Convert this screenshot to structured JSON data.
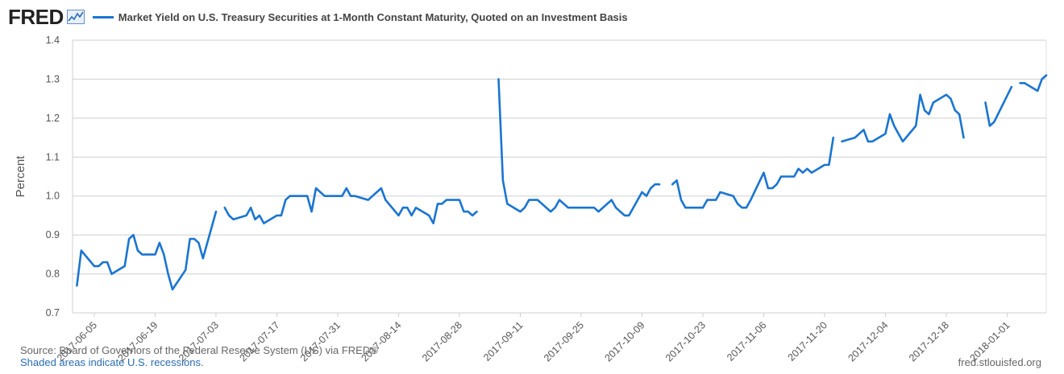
{
  "header": {
    "logo_text": "FRED",
    "logo_icon": "chart-line-icon",
    "series_title": "Market Yield on U.S. Treasury Securities at 1-Month Constant Maturity, Quoted on an Investment Basis",
    "series_color": "#1a75d1"
  },
  "footer": {
    "source": "Source: Board of Governors of the Federal Reserve System (US) via FRED®",
    "shaded": "Shaded areas indicate U.S. recessions.",
    "credit": "fred.stlouisfed.org"
  },
  "chart_data": {
    "type": "line",
    "ylabel": "Percent",
    "ylim": [
      0.7,
      1.4
    ],
    "yticks": [
      0.7,
      0.8,
      0.9,
      1.0,
      1.1,
      1.2,
      1.3,
      1.4
    ],
    "ytick_labels": [
      "0.7",
      "0.8",
      "0.9",
      "1.0",
      "1.1",
      "1.2",
      "1.3",
      "1.4"
    ],
    "xlim": [
      "2017-05-31",
      "2018-01-10"
    ],
    "xticks": [
      "2017-06-05",
      "2017-06-19",
      "2017-07-03",
      "2017-07-17",
      "2017-07-31",
      "2017-08-14",
      "2017-08-28",
      "2017-09-11",
      "2017-09-25",
      "2017-10-09",
      "2017-10-23",
      "2017-11-06",
      "2017-11-20",
      "2017-12-04",
      "2017-12-18",
      "2018-01-01"
    ],
    "grid": true,
    "series": [
      {
        "segments": [
          {
            "x": [
              "2017-06-01",
              "2017-06-02",
              "2017-06-05",
              "2017-06-06",
              "2017-06-07",
              "2017-06-08",
              "2017-06-09",
              "2017-06-12",
              "2017-06-13",
              "2017-06-14",
              "2017-06-15",
              "2017-06-16",
              "2017-06-19",
              "2017-06-20",
              "2017-06-21",
              "2017-06-22",
              "2017-06-23",
              "2017-06-26",
              "2017-06-27",
              "2017-06-28",
              "2017-06-29",
              "2017-06-30",
              "2017-07-03"
            ],
            "y": [
              0.77,
              0.86,
              0.82,
              0.82,
              0.83,
              0.83,
              0.8,
              0.82,
              0.89,
              0.9,
              0.86,
              0.85,
              0.85,
              0.88,
              0.85,
              0.8,
              0.76,
              0.81,
              0.89,
              0.89,
              0.88,
              0.84,
              0.96
            ]
          },
          {
            "x": [
              "2017-07-05",
              "2017-07-06",
              "2017-07-07",
              "2017-07-10",
              "2017-07-11",
              "2017-07-12",
              "2017-07-13",
              "2017-07-14",
              "2017-07-17",
              "2017-07-18",
              "2017-07-19",
              "2017-07-20",
              "2017-07-21",
              "2017-07-24",
              "2017-07-25",
              "2017-07-26",
              "2017-07-27",
              "2017-07-28",
              "2017-07-31",
              "2017-08-01",
              "2017-08-02",
              "2017-08-03",
              "2017-08-04",
              "2017-08-07",
              "2017-08-08",
              "2017-08-09",
              "2017-08-10",
              "2017-08-11",
              "2017-08-14",
              "2017-08-15",
              "2017-08-16",
              "2017-08-17",
              "2017-08-18",
              "2017-08-21",
              "2017-08-22",
              "2017-08-23",
              "2017-08-24",
              "2017-08-25",
              "2017-08-28",
              "2017-08-29",
              "2017-08-30",
              "2017-08-31",
              "2017-09-01"
            ],
            "y": [
              0.97,
              0.95,
              0.94,
              0.95,
              0.97,
              0.94,
              0.95,
              0.93,
              0.95,
              0.95,
              0.99,
              1.0,
              1.0,
              1.0,
              0.96,
              1.02,
              1.01,
              1.0,
              1.0,
              1.0,
              1.02,
              1.0,
              1.0,
              0.99,
              1.0,
              1.01,
              1.02,
              0.99,
              0.95,
              0.97,
              0.97,
              0.95,
              0.97,
              0.95,
              0.93,
              0.98,
              0.98,
              0.99,
              0.99,
              0.96,
              0.96,
              0.95,
              0.96
            ]
          },
          {
            "x": [
              "2017-09-06",
              "2017-09-07",
              "2017-09-08",
              "2017-09-11",
              "2017-09-12",
              "2017-09-13",
              "2017-09-14",
              "2017-09-15",
              "2017-09-18",
              "2017-09-19",
              "2017-09-20",
              "2017-09-21",
              "2017-09-22",
              "2017-09-25",
              "2017-09-26",
              "2017-09-27",
              "2017-09-28",
              "2017-09-29",
              "2017-10-02",
              "2017-10-03",
              "2017-10-04",
              "2017-10-05",
              "2017-10-06",
              "2017-10-09",
              "2017-10-10",
              "2017-10-11",
              "2017-10-12",
              "2017-10-13"
            ],
            "y": [
              1.3,
              1.04,
              0.98,
              0.96,
              0.97,
              0.99,
              0.99,
              0.99,
              0.96,
              0.97,
              0.99,
              0.98,
              0.97,
              0.97,
              0.97,
              0.97,
              0.97,
              0.96,
              0.99,
              0.97,
              0.96,
              0.95,
              0.95,
              1.01,
              1.0,
              1.02,
              1.03,
              1.03
            ]
          },
          {
            "x": [
              "2017-10-16",
              "2017-10-17",
              "2017-10-18",
              "2017-10-19",
              "2017-10-20",
              "2017-10-23",
              "2017-10-24",
              "2017-10-25",
              "2017-10-26",
              "2017-10-27",
              "2017-10-30",
              "2017-10-31",
              "2017-11-01",
              "2017-11-02",
              "2017-11-03",
              "2017-11-06",
              "2017-11-07",
              "2017-11-08",
              "2017-11-09",
              "2017-11-10",
              "2017-11-13",
              "2017-11-14",
              "2017-11-15",
              "2017-11-16",
              "2017-11-17",
              "2017-11-20",
              "2017-11-21",
              "2017-11-22"
            ],
            "y": [
              1.03,
              1.04,
              0.99,
              0.97,
              0.97,
              0.97,
              0.99,
              0.99,
              0.99,
              1.01,
              1.0,
              0.98,
              0.97,
              0.97,
              0.99,
              1.06,
              1.02,
              1.02,
              1.03,
              1.05,
              1.05,
              1.07,
              1.06,
              1.07,
              1.06,
              1.08,
              1.08,
              1.15
            ]
          },
          {
            "x": [
              "2017-11-24",
              "2017-11-27",
              "2017-11-28",
              "2017-11-29",
              "2017-11-30",
              "2017-12-01",
              "2017-12-04",
              "2017-12-05",
              "2017-12-06",
              "2017-12-07",
              "2017-12-08",
              "2017-12-11",
              "2017-12-12",
              "2017-12-13",
              "2017-12-14",
              "2017-12-15",
              "2017-12-18",
              "2017-12-19",
              "2017-12-20",
              "2017-12-21",
              "2017-12-22"
            ],
            "y": [
              1.14,
              1.15,
              1.16,
              1.17,
              1.14,
              1.14,
              1.16,
              1.21,
              1.18,
              1.16,
              1.14,
              1.18,
              1.26,
              1.22,
              1.21,
              1.24,
              1.26,
              1.25,
              1.22,
              1.21,
              1.15
            ]
          },
          {
            "x": [
              "2017-12-27",
              "2017-12-28",
              "2017-12-29",
              "2018-01-02"
            ],
            "y": [
              1.24,
              1.18,
              1.19,
              1.28
            ]
          },
          {
            "x": [
              "2018-01-04",
              "2018-01-05",
              "2018-01-08",
              "2018-01-09",
              "2018-01-10"
            ],
            "y": [
              1.29,
              1.29,
              1.27,
              1.3,
              1.31
            ]
          }
        ]
      }
    ]
  }
}
